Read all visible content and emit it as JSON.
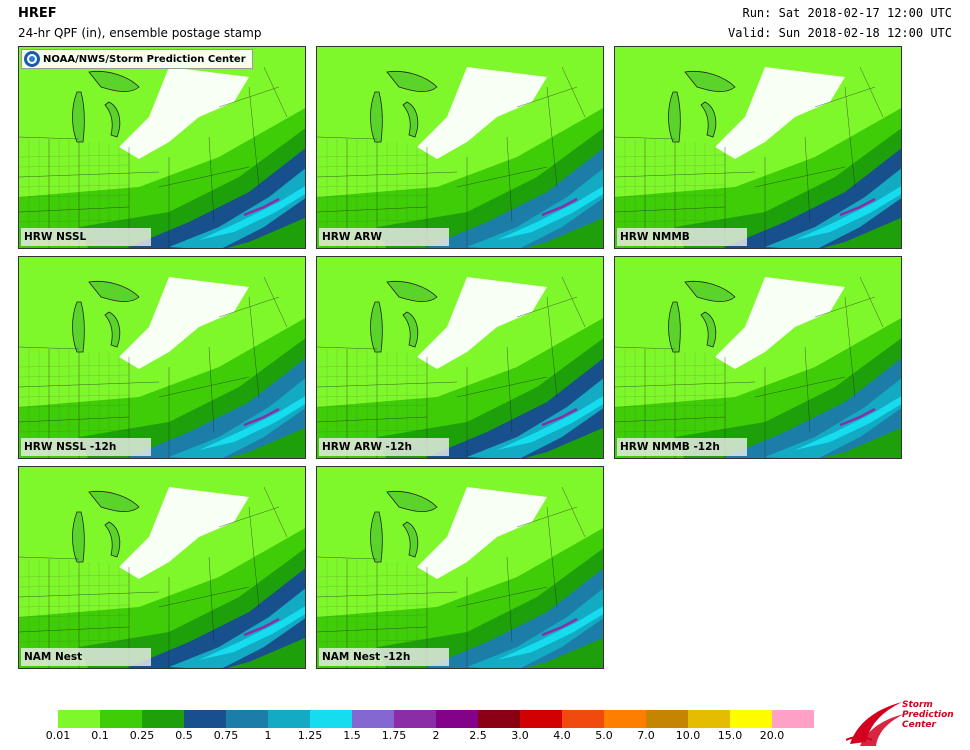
{
  "header": {
    "title": "HREF",
    "subtitle": "24-hr QPF (in), ensemble postage stamp",
    "run": "Run: Sat 2018-02-17 12:00 UTC",
    "valid": "Valid: Sun 2018-02-18 12:00 UTC"
  },
  "credit": {
    "text": "NOAA/NWS/Storm Prediction Center"
  },
  "panels": [
    {
      "label": "HRW NSSL"
    },
    {
      "label": "HRW ARW"
    },
    {
      "label": "HRW NMMB"
    },
    {
      "label": "HRW NSSL -12h"
    },
    {
      "label": "HRW ARW -12h"
    },
    {
      "label": "HRW NMMB -12h"
    },
    {
      "label": "NAM Nest"
    },
    {
      "label": "NAM Nest -12h"
    }
  ],
  "legend": {
    "colors": [
      "#7ef82a",
      "#3ecd06",
      "#1da00a",
      "#17508c",
      "#1c7ea8",
      "#13abc4",
      "#16dcef",
      "#8467d1",
      "#8a2da6",
      "#84028a",
      "#880011",
      "#d30000",
      "#f04a0f",
      "#fe7f00",
      "#c68500",
      "#e4bc00",
      "#fffd00",
      "#ffa0c6"
    ],
    "ticks": [
      "0.01",
      "0.1",
      "0.25",
      "0.5",
      "0.75",
      "1",
      "1.25",
      "1.5",
      "1.75",
      "2",
      "2.5",
      "3.0",
      "4.0",
      "5.0",
      "7.0",
      "10.0",
      "15.0",
      "20.0"
    ]
  },
  "logo": {
    "line1": "Storm",
    "line2": "Prediction",
    "line3": "Center"
  }
}
